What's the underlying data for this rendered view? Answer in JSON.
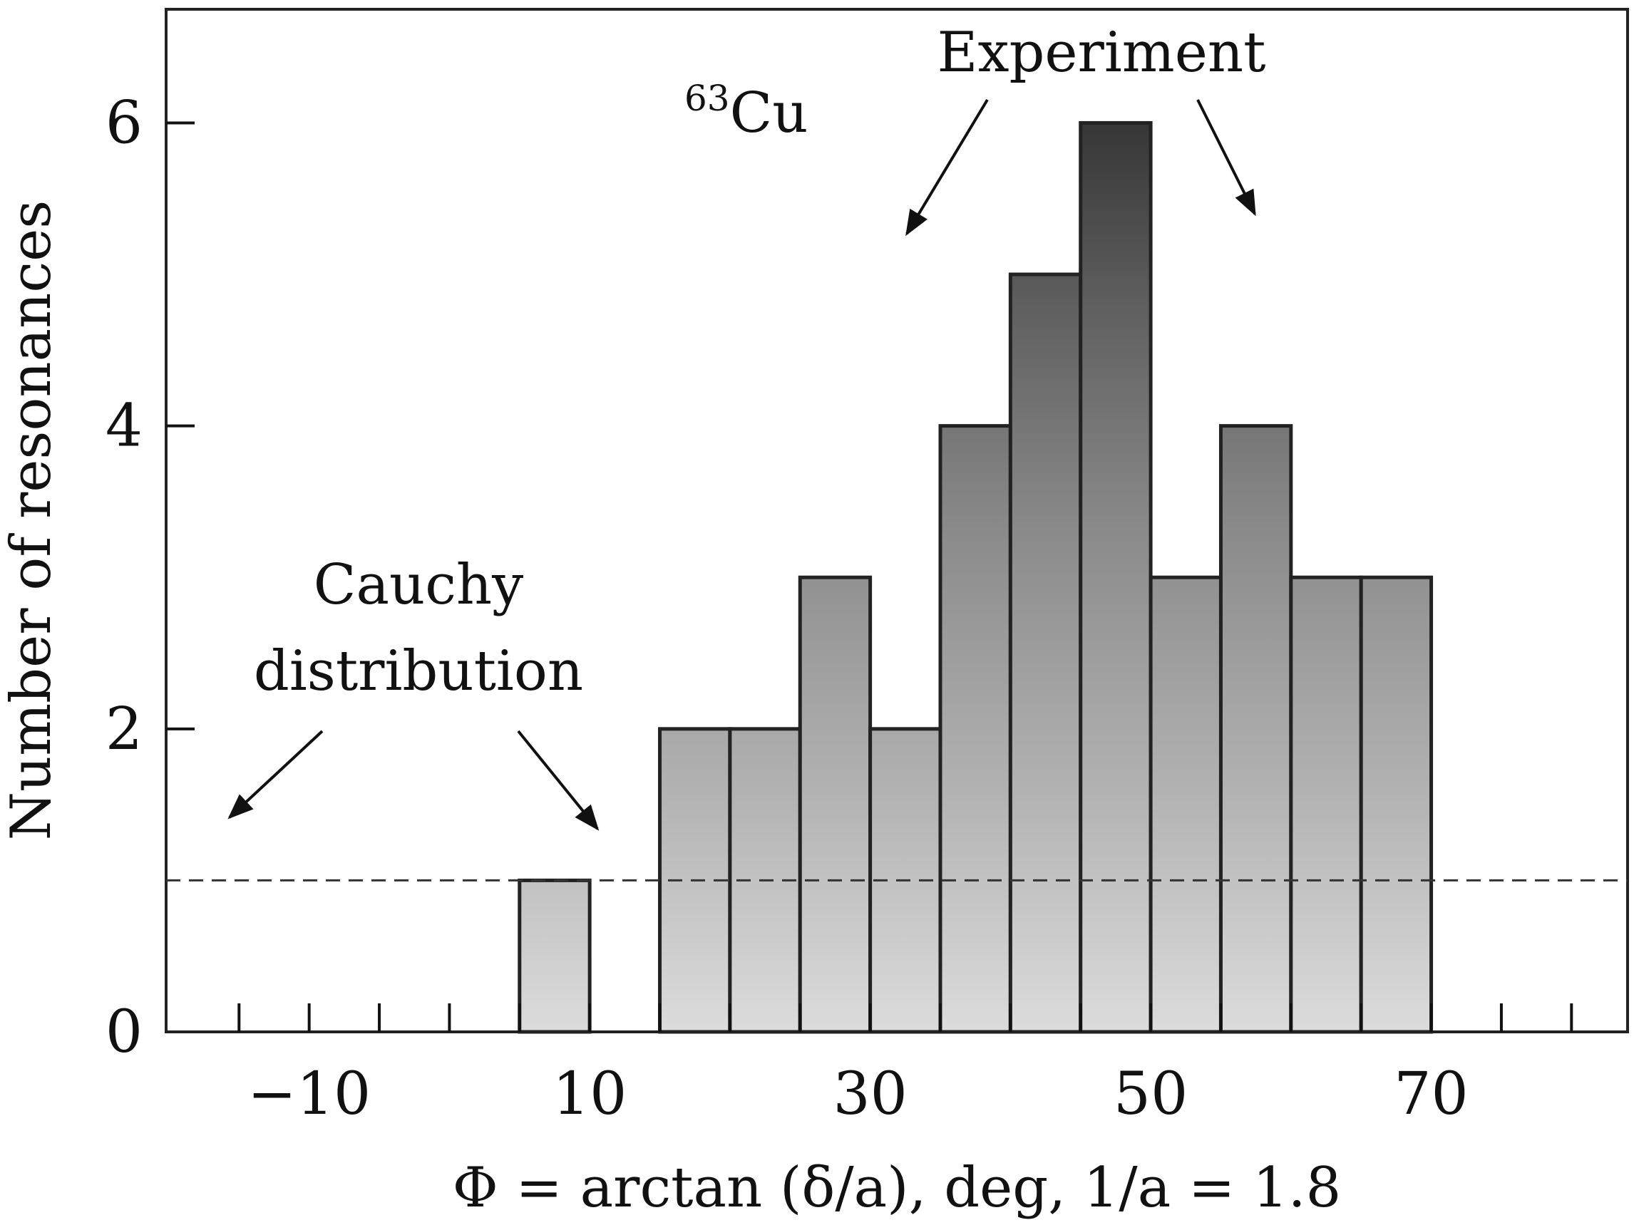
{
  "chart_data": {
    "type": "bar",
    "ylabel": "Number of resonances",
    "xlabel": "Φ = arctan (δ/a), deg, 1/a = 1.8",
    "x_ticks_labeled": [
      -10,
      10,
      30,
      50,
      70
    ],
    "x_tick_labels": [
      "−10",
      "10",
      "30",
      "50",
      "70"
    ],
    "x_minor_ticks": [
      -15,
      -10,
      -5,
      0,
      5,
      10,
      15,
      20,
      25,
      30,
      35,
      40,
      45,
      50,
      55,
      60,
      65,
      70,
      75,
      80
    ],
    "y_ticks": [
      0,
      2,
      4,
      6
    ],
    "y_tick_labels": [
      "0",
      "2",
      "4",
      "6"
    ],
    "xlim": [
      -20.2,
      84
    ],
    "ylim": [
      0,
      6.75
    ],
    "bin_width": 5,
    "bins": [
      {
        "left": 5,
        "value": 1
      },
      {
        "left": 15,
        "value": 2
      },
      {
        "left": 20,
        "value": 2
      },
      {
        "left": 25,
        "value": 3
      },
      {
        "left": 30,
        "value": 2
      },
      {
        "left": 35,
        "value": 4
      },
      {
        "left": 40,
        "value": 5
      },
      {
        "left": 45,
        "value": 6
      },
      {
        "left": 50,
        "value": 3
      },
      {
        "left": 55,
        "value": 4
      },
      {
        "left": 60,
        "value": 3
      },
      {
        "left": 65,
        "value": 3
      }
    ],
    "reference_line": {
      "y": 1,
      "style": "dashed",
      "label": "Cauchy distribution"
    },
    "grid": false,
    "colors": {
      "bar_light": "#d6d6d6",
      "bar_dark": "#3a3a3a",
      "edge": "#222222",
      "dashed": "#333333"
    }
  },
  "annotations": {
    "isotope_mass": "63",
    "isotope_symbol": "Cu",
    "experiment": "Experiment",
    "cauchy_line1": "Cauchy",
    "cauchy_line2": "distribution"
  }
}
